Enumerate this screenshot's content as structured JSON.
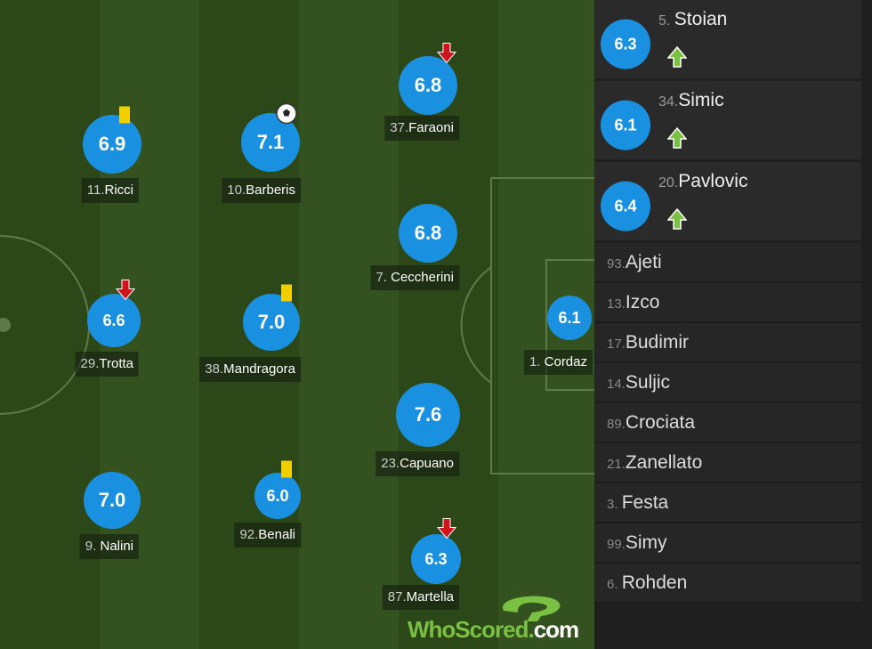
{
  "players": [
    {
      "num": "11.",
      "name": "Ricci",
      "rating": "6.9",
      "icon": "yellow-card"
    },
    {
      "num": "10.",
      "name": "Barberis",
      "rating": "7.1",
      "icon": "goal-ball"
    },
    {
      "num": "37.",
      "name": "Faraoni",
      "rating": "6.8",
      "icon": "sub-off-arrow"
    },
    {
      "num": "7. ",
      "name": "Ceccherini",
      "rating": "6.8",
      "icon": ""
    },
    {
      "num": "29.",
      "name": "Trotta",
      "rating": "6.6",
      "icon": "sub-off-arrow"
    },
    {
      "num": "38.",
      "name": "Mandragora",
      "rating": "7.0",
      "icon": "yellow-card"
    },
    {
      "num": "1. ",
      "name": "Cordaz",
      "rating": "6.1",
      "icon": ""
    },
    {
      "num": "23.",
      "name": "Capuano",
      "rating": "7.6",
      "icon": ""
    },
    {
      "num": "9. ",
      "name": "Nalini",
      "rating": "7.0",
      "icon": ""
    },
    {
      "num": "92.",
      "name": "Benali",
      "rating": "6.0",
      "icon": "yellow-card"
    },
    {
      "num": "87.",
      "name": "Martella",
      "rating": "6.3",
      "icon": "sub-off-arrow"
    }
  ],
  "subs_used": [
    {
      "num": "5. ",
      "name": "Stoian",
      "rating": "6.3",
      "icon": "sub-on-arrow"
    },
    {
      "num": "34.",
      "name": "Simic",
      "rating": "6.1",
      "icon": "sub-on-arrow"
    },
    {
      "num": "20.",
      "name": "Pavlovic",
      "rating": "6.4",
      "icon": "sub-on-arrow"
    }
  ],
  "bench": [
    {
      "num": "93.",
      "name": "Ajeti"
    },
    {
      "num": "13.",
      "name": "Izco"
    },
    {
      "num": "17.",
      "name": "Budimir"
    },
    {
      "num": "14.",
      "name": "Suljic"
    },
    {
      "num": "89.",
      "name": "Crociata"
    },
    {
      "num": "21.",
      "name": "Zanellato"
    },
    {
      "num": "3. ",
      "name": "Festa"
    },
    {
      "num": "99.",
      "name": "Simy"
    },
    {
      "num": "6. ",
      "name": "Rohden"
    }
  ],
  "logo": {
    "who": "WhoScored",
    ".": ".",
    "com": "com"
  },
  "colors": {
    "rating": "#1a90e0",
    "card": "#f2d000",
    "sub_off": "#d0141c",
    "sub_on": "#7ac143"
  }
}
